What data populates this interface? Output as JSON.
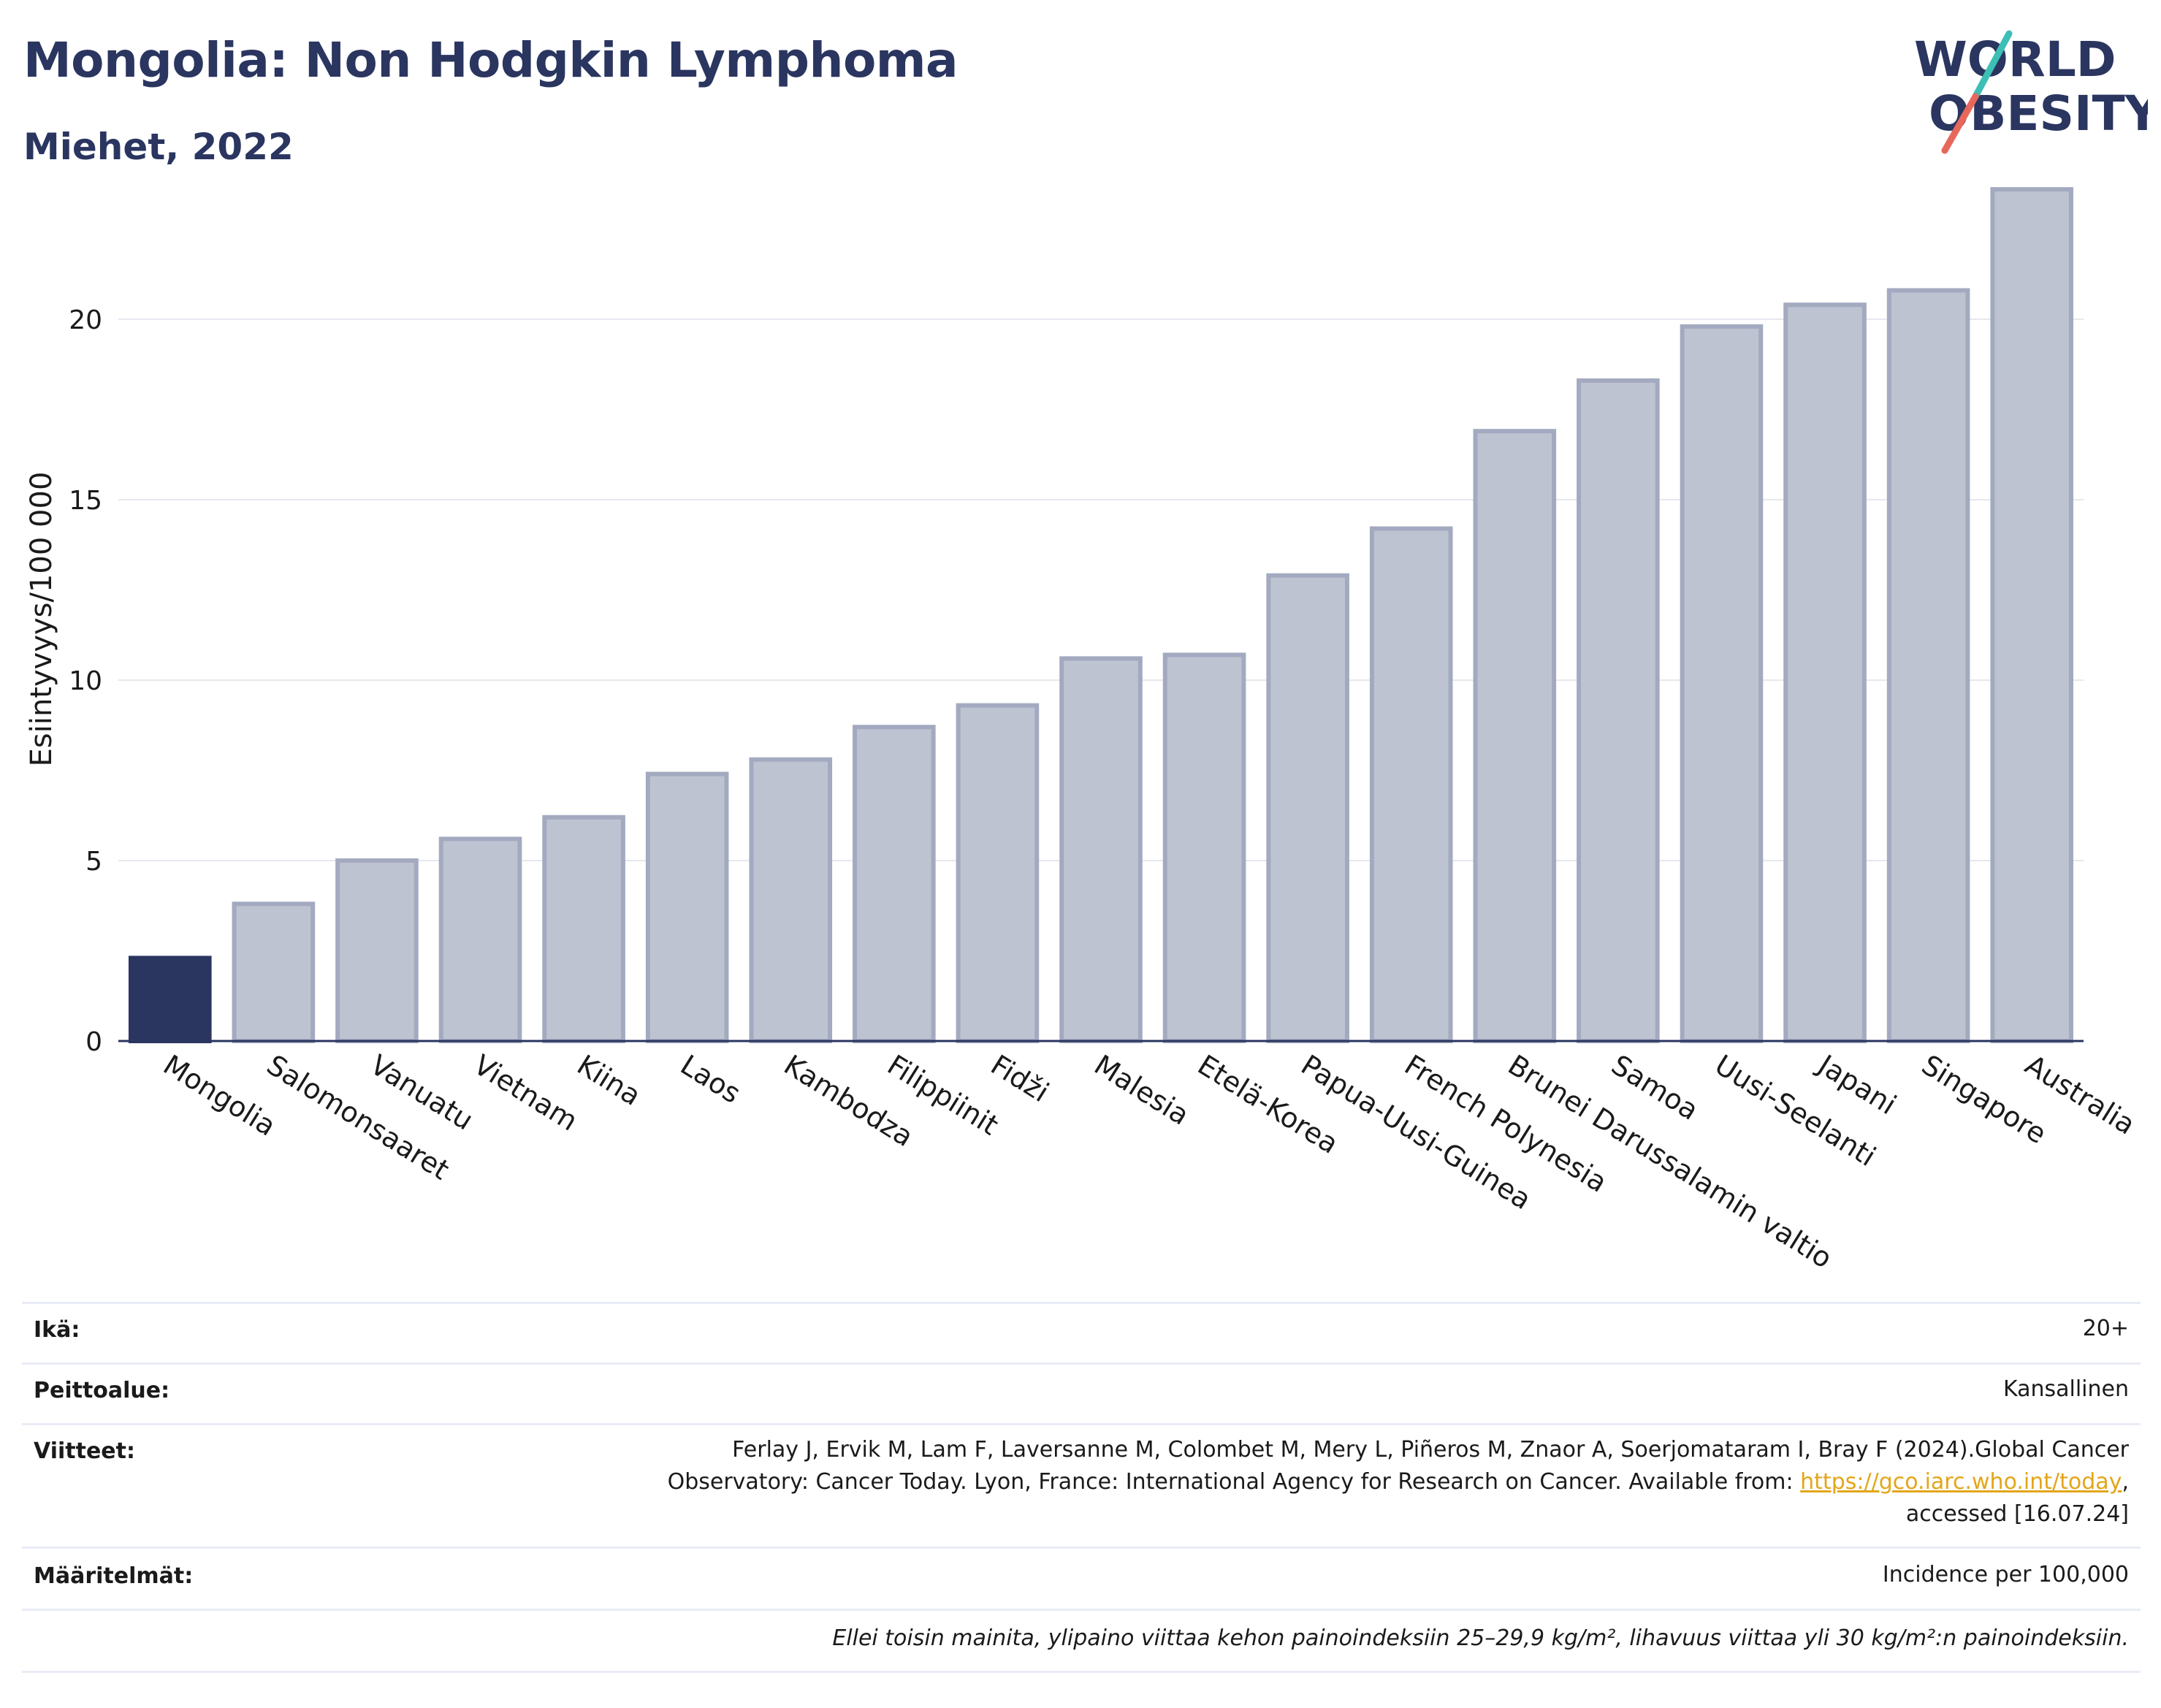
{
  "header": {
    "title": "Mongolia: Non Hodgkin Lymphoma",
    "subtitle": "Miehet, 2022"
  },
  "logo": {
    "line1": "WORLD",
    "line2": "OBESITY",
    "colors": {
      "text": "#2a3560",
      "slash_top": "#3cbfb4",
      "slash_bottom": "#e8675b"
    }
  },
  "chart_data": {
    "type": "bar",
    "ylabel": "Esiintyvyys/100 000",
    "ylim": [
      0,
      25
    ],
    "yticks": [
      0,
      5,
      10,
      15,
      20
    ],
    "grid": true,
    "categories": [
      "Mongolia",
      "Salomonsaaret",
      "Vanuatu",
      "Vietnam",
      "Kiina",
      "Laos",
      "Kambodza",
      "Filippiinit",
      "Fidži",
      "Malesia",
      "Etelä-Korea",
      "Papua-Uusi-Guinea",
      "French Polynesia",
      "Brunei Darussalamin valtio",
      "Samoa",
      "Uusi-Seelanti",
      "Japani",
      "Singapore",
      "Australia"
    ],
    "values": [
      2.3,
      3.8,
      5.0,
      5.6,
      6.2,
      7.4,
      7.8,
      8.7,
      9.3,
      10.6,
      10.7,
      12.9,
      14.2,
      16.9,
      18.3,
      19.8,
      20.4,
      20.8,
      23.6
    ],
    "highlight_index": 0,
    "colors": {
      "highlight": "#2a3560",
      "bar_fill": "#bec3d1",
      "bar_stroke": "#a3aac0",
      "axis": "#2a3560",
      "grid": "#e6e8ef"
    }
  },
  "meta": {
    "age_label": "Ikä:",
    "age_value": "20+",
    "coverage_label": "Peittoalue:",
    "coverage_value": "Kansallinen",
    "refs_label": "Viitteet:",
    "refs_line1": "Ferlay J, Ervik M, Lam F, Laversanne M, Colombet M, Mery L, Piñeros M, Znaor A, Soerjomataram I, Bray F (2024).Global Cancer",
    "refs_line2_pre": "Observatory: Cancer Today. Lyon, France: International Agency for Research on Cancer. Available from: ",
    "refs_link": "https://gco.iarc.who.int/today",
    "refs_line2_post": ",",
    "refs_line3": "accessed [16.07.24]",
    "defs_label": "Määritelmät:",
    "defs_value": "Incidence per 100,000",
    "note": "Ellei toisin mainita, ylipaino viittaa kehon painoindeksiin 25–29,9 kg/m², lihavuus viittaa yli 30 kg/m²:n painoindeksiin."
  }
}
